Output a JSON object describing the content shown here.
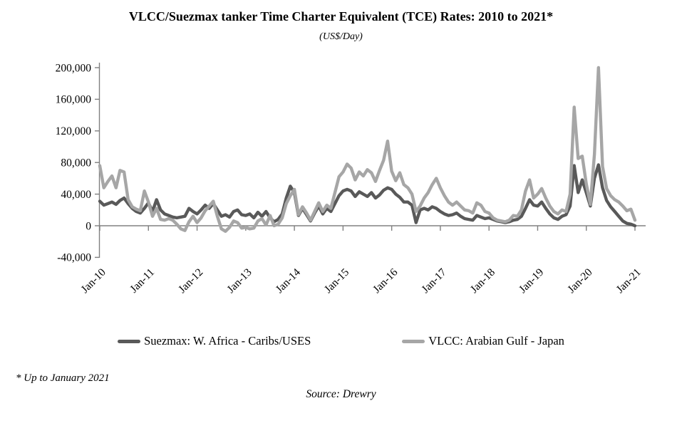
{
  "title": "VLCC/Suezmax tanker Time Charter Equivalent (TCE) Rates: 2010 to 2021*",
  "subtitle": "(US$/Day)",
  "footnote": "* Up to January 2021",
  "source": "Source: Drewry",
  "chart_data": {
    "type": "line",
    "unit": "US$/Day",
    "x_description": "monthly values from Jan-2010 to Jan-2021 (133 points)",
    "x_tick_labels": [
      "Jan-10",
      "Jan-11",
      "Jan-12",
      "Jan-13",
      "Jan-14",
      "Jan-15",
      "Jan-16",
      "Jan-17",
      "Jan-18",
      "Jan-19",
      "Jan-20",
      "Jan-21"
    ],
    "x_tick_month_indices": [
      0,
      12,
      24,
      36,
      48,
      60,
      72,
      84,
      96,
      108,
      120,
      132
    ],
    "ylim": [
      -40000,
      200000
    ],
    "yticks": [
      200000,
      160000,
      120000,
      80000,
      40000,
      0,
      -40000
    ],
    "ytick_labels": [
      "200,000",
      "160,000",
      "120,000",
      "80,000",
      "40,000",
      "0",
      "-40,000"
    ],
    "grid": false,
    "legend_position": "bottom",
    "axis_color": "#808080",
    "series": [
      {
        "name": "Suezmax: W. Africa - Caribs/USES",
        "color": "#595959",
        "values": [
          31000,
          26000,
          28000,
          30000,
          27000,
          32000,
          35000,
          28000,
          22000,
          18000,
          16000,
          22000,
          29000,
          18000,
          33000,
          20000,
          15000,
          13000,
          11000,
          10000,
          11000,
          12000,
          22000,
          18000,
          15000,
          20000,
          26000,
          22000,
          28000,
          20000,
          12000,
          14000,
          11000,
          18000,
          20000,
          14000,
          13000,
          15000,
          10000,
          17000,
          12000,
          18000,
          10000,
          5000,
          8000,
          15000,
          35000,
          50000,
          42000,
          13000,
          22000,
          14000,
          6000,
          16000,
          25000,
          15000,
          22000,
          18000,
          28000,
          38000,
          44000,
          46000,
          44000,
          37000,
          43000,
          40000,
          37000,
          42000,
          35000,
          39000,
          45000,
          48000,
          46000,
          40000,
          36000,
          30000,
          30000,
          26000,
          4000,
          20000,
          22000,
          20000,
          24000,
          22000,
          18000,
          15000,
          13000,
          14000,
          16000,
          12000,
          9000,
          8000,
          7000,
          13000,
          11000,
          9000,
          10000,
          8000,
          6000,
          5000,
          4000,
          5000,
          7000,
          8000,
          12000,
          22000,
          33000,
          26000,
          25000,
          30000,
          22000,
          15000,
          10000,
          8000,
          12000,
          14000,
          25000,
          76000,
          42000,
          58000,
          42000,
          25000,
          60000,
          77000,
          48000,
          32000,
          24000,
          18000,
          12000,
          6000,
          3000,
          2000,
          0
        ]
      },
      {
        "name": "VLCC: Arabian Gulf - Japan",
        "color": "#a6a6a6",
        "values": [
          76000,
          48000,
          56000,
          63000,
          48000,
          70000,
          68000,
          33000,
          24000,
          21000,
          19000,
          44000,
          30000,
          12000,
          22000,
          8000,
          7000,
          9000,
          7000,
          2000,
          -4000,
          -6000,
          5000,
          12000,
          4000,
          10000,
          19000,
          25000,
          31000,
          12000,
          -4000,
          -7000,
          -2000,
          6000,
          4000,
          -3000,
          -2000,
          -4000,
          -3000,
          6000,
          9000,
          1000,
          13000,
          0,
          2000,
          10000,
          28000,
          38000,
          46000,
          14000,
          24000,
          16000,
          7000,
          18000,
          29000,
          18000,
          26000,
          22000,
          42000,
          62000,
          68000,
          78000,
          73000,
          58000,
          68000,
          63000,
          71000,
          67000,
          56000,
          70000,
          83000,
          107000,
          69000,
          57000,
          67000,
          52000,
          48000,
          40000,
          18000,
          25000,
          35000,
          42000,
          52000,
          60000,
          48000,
          38000,
          30000,
          26000,
          30000,
          25000,
          20000,
          19000,
          16000,
          29000,
          26000,
          18000,
          16000,
          10000,
          7000,
          6000,
          5000,
          7000,
          13000,
          12000,
          20000,
          44000,
          58000,
          35000,
          40000,
          47000,
          35000,
          25000,
          18000,
          15000,
          20000,
          18000,
          40000,
          150000,
          85000,
          88000,
          53000,
          27000,
          90000,
          200000,
          75000,
          47000,
          38000,
          33000,
          30000,
          25000,
          19000,
          21000,
          7000
        ]
      }
    ]
  }
}
